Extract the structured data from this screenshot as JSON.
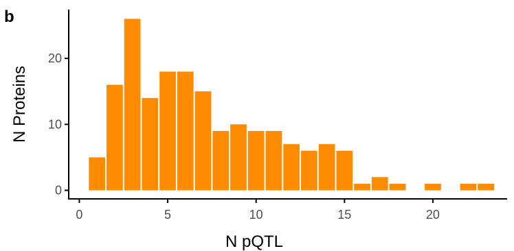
{
  "panel_label": "b",
  "chart_data": {
    "type": "bar",
    "title": "",
    "xlabel": "N pQTL",
    "ylabel": "N Proteins",
    "bar_color": "#ff8c00",
    "axis_color": "#000000",
    "tick_label_color": "#4d4d4d",
    "grid": false,
    "xlim": [
      -0.6,
      24.2
    ],
    "ylim": [
      -1.3,
      27.4
    ],
    "x_ticks": [
      0,
      5,
      10,
      15,
      20
    ],
    "x_tick_labels": [
      "0",
      "5",
      "10",
      "15",
      "20"
    ],
    "y_ticks": [
      0,
      10,
      20
    ],
    "y_tick_labels": [
      "0",
      "10",
      "20"
    ],
    "categories": [
      1,
      2,
      3,
      4,
      5,
      6,
      7,
      8,
      9,
      10,
      11,
      12,
      13,
      14,
      15,
      16,
      17,
      18,
      19,
      20,
      21,
      22,
      23
    ],
    "values": [
      5,
      16,
      26,
      14,
      18,
      18,
      15,
      9,
      10,
      9,
      9,
      7,
      6,
      7,
      6,
      1,
      2,
      1,
      0,
      1,
      0,
      1,
      1
    ]
  }
}
